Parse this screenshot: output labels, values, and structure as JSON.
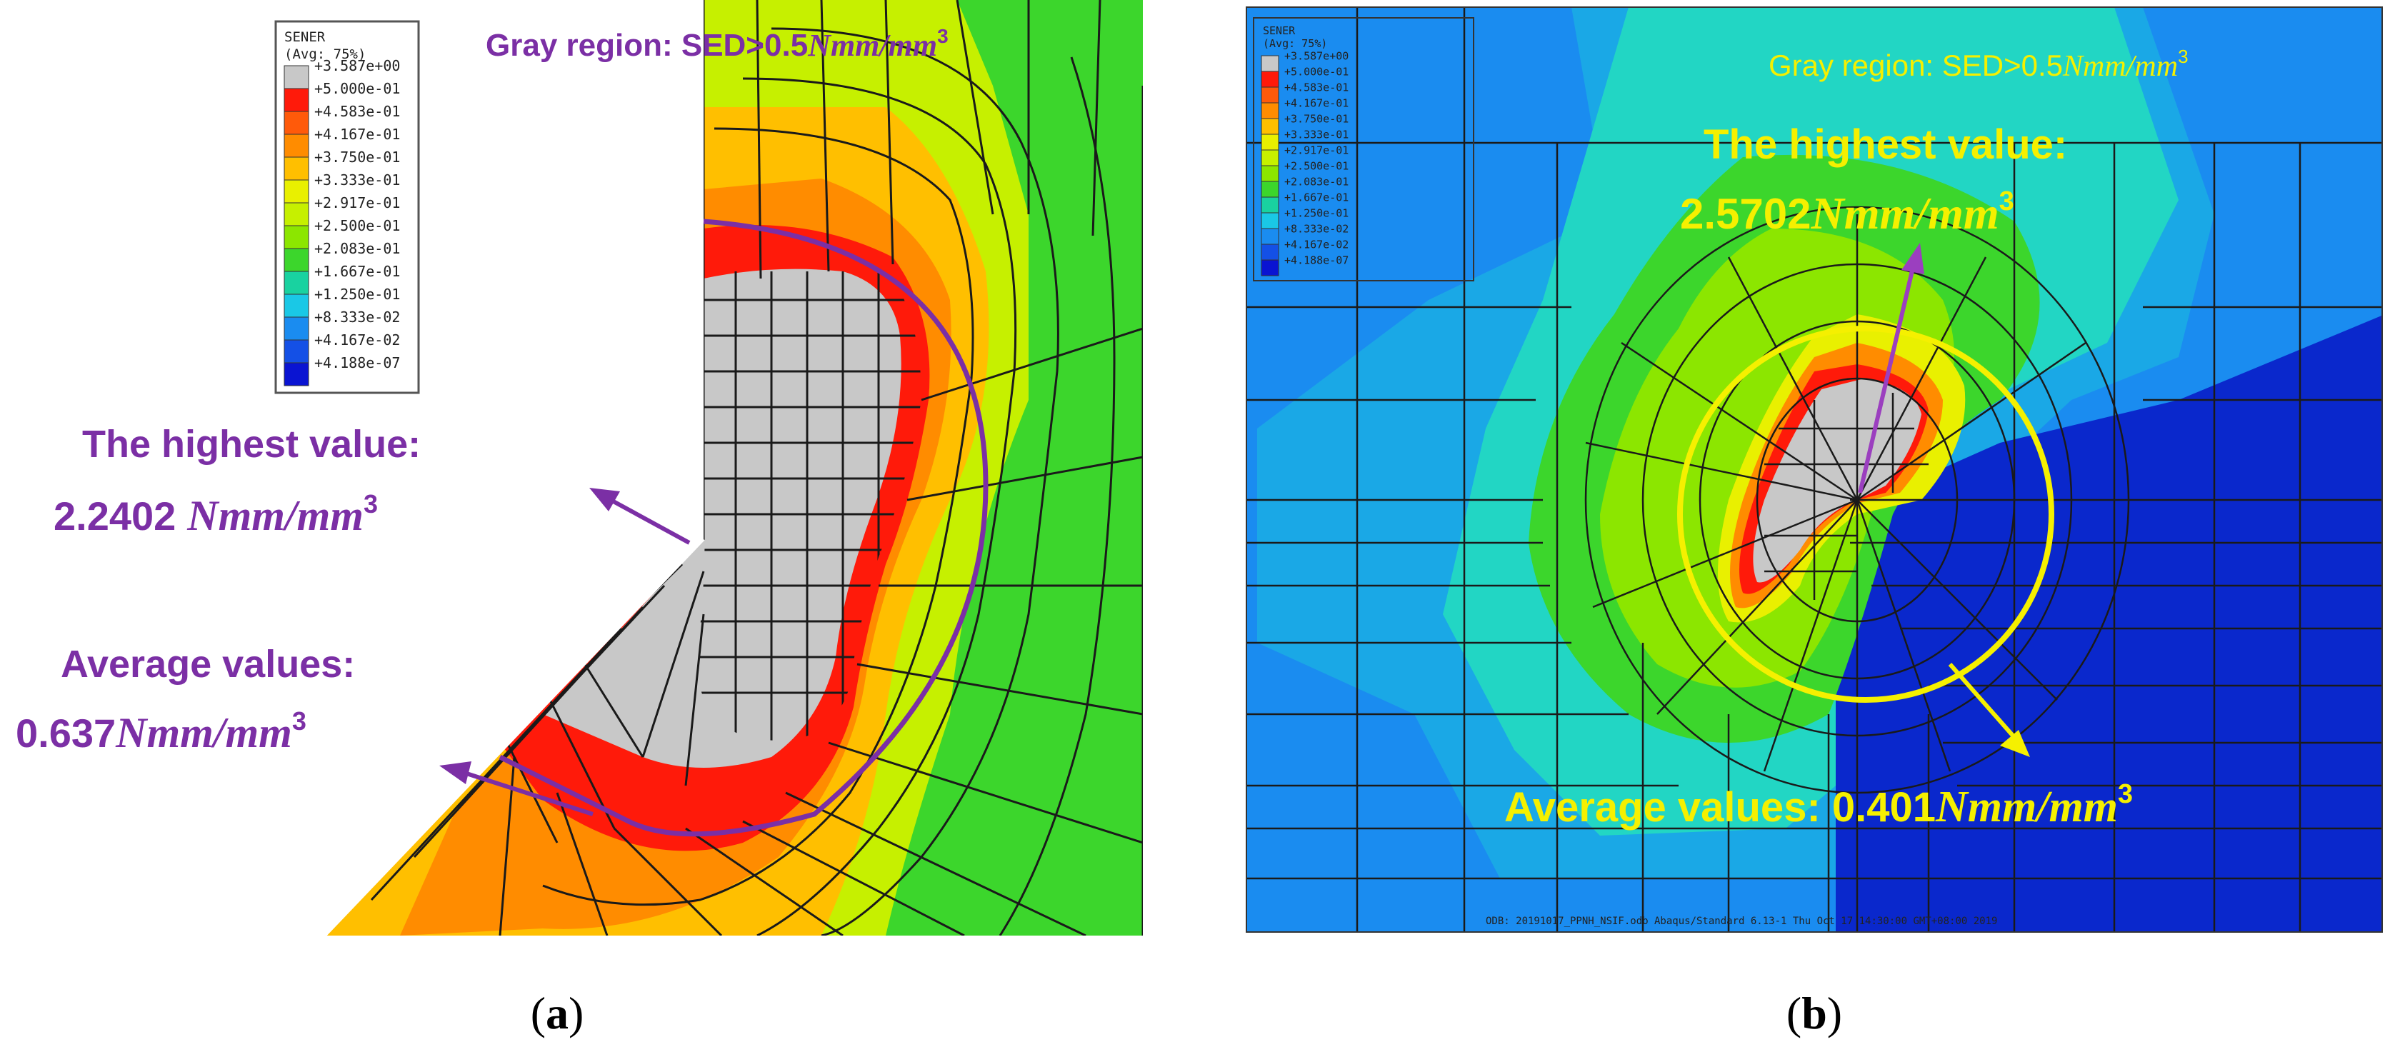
{
  "panel_a": {
    "legend": {
      "title": "SENER",
      "subtitle": "(Avg: 75%)",
      "values": [
        "+3.587e+00",
        "+5.000e-01",
        "+4.583e-01",
        "+4.167e-01",
        "+3.750e-01",
        "+3.333e-01",
        "+2.917e-01",
        "+2.500e-01",
        "+2.083e-01",
        "+1.667e-01",
        "+1.250e-01",
        "+8.333e-02",
        "+4.167e-02",
        "+4.188e-07"
      ],
      "colors": [
        "#c8c8c8",
        "#ff1a0a",
        "#ff5a0a",
        "#ff8c00",
        "#ffbf00",
        "#e9f000",
        "#c6f000",
        "#8ce600",
        "#3cd62c",
        "#19d2a0",
        "#1ac8e6",
        "#1a8cf0",
        "#1450e6",
        "#0a14d2"
      ]
    },
    "gray_region_prefix": "Gray region: SED>0.5",
    "gray_region_unit": "Nmm/mm",
    "highest_label": "The highest value:",
    "highest_value": "2.2402",
    "highest_unit": "Nmm/mm",
    "average_label": "Average values:",
    "average_value": "0.637",
    "average_unit": "Nmm/mm",
    "exponent": "3",
    "caption": "a",
    "annotation_color": "#7b2fa5"
  },
  "panel_b": {
    "gray_region_prefix": "Gray region: SED>0.5",
    "gray_region_unit": "Nmm/mm",
    "highest_label": "The highest value:",
    "highest_value": "2.5702",
    "highest_unit": "Nmm/mm",
    "average_label": "Average values: 0.401",
    "average_unit": "Nmm/mm",
    "exponent": "3",
    "footer": "ODB: 20191017_PPNH_NSIF.odb   Abaqus/Standard 6.13-1   Thu Oct 17 14:30:00 GMT+08:00 2019",
    "caption": "b",
    "annotation_color": "#f5f000"
  },
  "colors": {
    "gray": "#c8c8c8",
    "red": "#ff1a0a",
    "orange": "#ff8c00",
    "amber": "#ffbf00",
    "yellow": "#e9f000",
    "green": "#3cd62c",
    "cyan": "#22d6c4",
    "lightblue": "#1aa8e6",
    "blue": "#1a6ee6",
    "darkblue": "#0a28cc"
  }
}
